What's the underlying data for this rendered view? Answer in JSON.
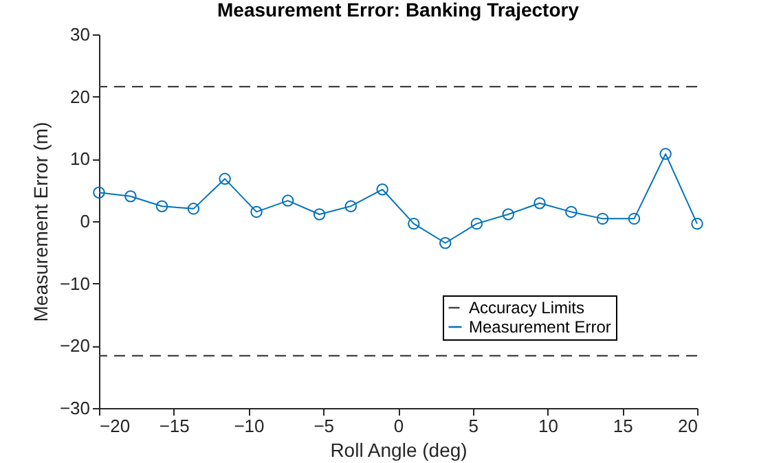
{
  "chart_data": {
    "type": "line",
    "title": "Measurement Error: Banking Trajectory",
    "xlabel": "Roll Angle (deg)",
    "ylabel": "Measurement Error (m)",
    "x": [
      -20,
      -17.89,
      -15.79,
      -13.68,
      -11.58,
      -9.47,
      -7.37,
      -5.26,
      -3.16,
      -1.05,
      1.05,
      3.16,
      5.26,
      7.37,
      9.47,
      11.58,
      13.68,
      15.79,
      17.89,
      20
    ],
    "series": [
      {
        "name": "Measurement Error",
        "color": "#0072bd",
        "values": [
          4.6,
          4.0,
          2.4,
          2.0,
          6.8,
          1.5,
          3.3,
          1.1,
          2.4,
          5.1,
          -0.4,
          -3.5,
          -0.4,
          1.1,
          2.9,
          1.5,
          0.4,
          0.4,
          10.8,
          -0.4
        ]
      }
    ],
    "marker": "circle",
    "line_style": "solid",
    "ref_lines": [
      {
        "axis": "y",
        "value": 21.6,
        "label": "Accuracy Limits",
        "color": "#404040",
        "line_style": "dashed"
      },
      {
        "axis": "y",
        "value": -21.6,
        "color": "#404040",
        "line_style": "dashed"
      }
    ],
    "xlim": [
      -20,
      20
    ],
    "xticks": [
      -20,
      -15,
      -10,
      -5,
      0,
      5,
      10,
      15,
      20
    ],
    "ylim": [
      -30,
      30
    ],
    "yticks": [
      -30,
      -20,
      -10,
      0,
      10,
      20,
      30
    ],
    "grid": false,
    "legend": "bottom right"
  }
}
